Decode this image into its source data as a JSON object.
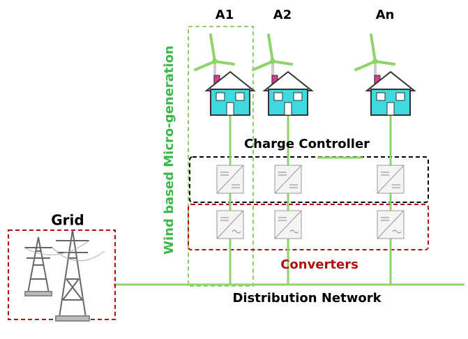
{
  "units": [
    {
      "label": "A1"
    },
    {
      "label": "A2"
    },
    {
      "label": "An"
    }
  ],
  "labels": {
    "micro_generation": "Wind based Micro-generation",
    "charge_controller": "Charge Controller",
    "converters": "Converters",
    "grid": "Grid",
    "distribution_network": "Distribution Network"
  }
}
